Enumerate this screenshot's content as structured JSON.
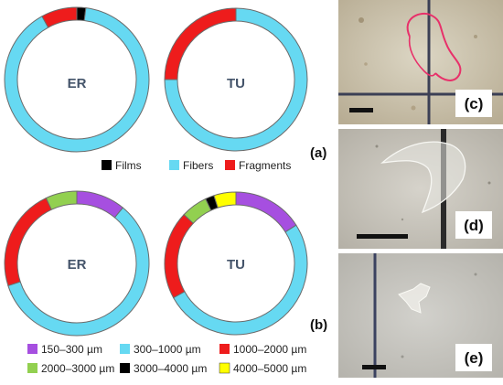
{
  "chart_data": [
    {
      "type": "pie",
      "panel": "(a)",
      "charts": [
        {
          "label": "ER",
          "values": [
            2,
            90,
            8
          ]
        },
        {
          "label": "TU",
          "values": [
            0,
            75,
            25
          ]
        }
      ],
      "categories": [
        "Films",
        "Fibers",
        "Fragments"
      ],
      "colors": [
        "#000000",
        "#66d9f2",
        "#ee1c1c"
      ],
      "legend_position": "bottom"
    },
    {
      "type": "pie",
      "panel": "(b)",
      "charts": [
        {
          "label": "ER",
          "values": [
            11,
            59,
            23,
            7,
            0,
            0
          ]
        },
        {
          "label": "TU",
          "values": [
            16,
            51,
            20,
            6,
            2,
            5
          ]
        }
      ],
      "categories": [
        "150–300 µm",
        "300–1000 µm",
        "1000–2000 µm",
        "2000–3000 µm",
        "3000–4000 µm",
        "4000–5000 µm"
      ],
      "colors": [
        "#a64fe0",
        "#66d9f2",
        "#ee1c1c",
        "#92d050",
        "#000000",
        "#ffff00"
      ],
      "legend_position": "bottom"
    }
  ],
  "photos": [
    {
      "tag": "(c)",
      "subject": "red fiber"
    },
    {
      "tag": "(d)",
      "subject": "transparent film"
    },
    {
      "tag": "(e)",
      "subject": "fragment"
    }
  ]
}
